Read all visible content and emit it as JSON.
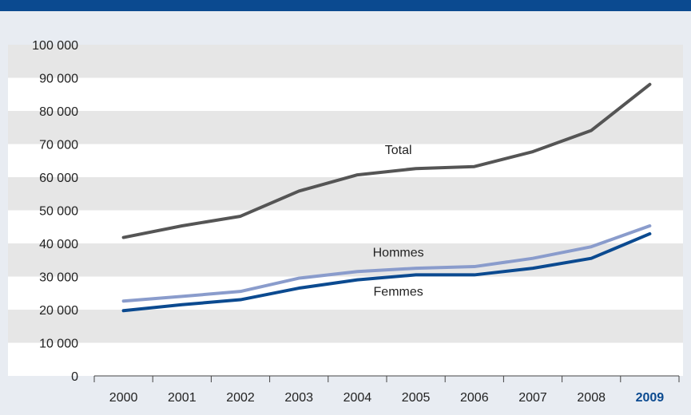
{
  "chart_data": {
    "type": "line",
    "x": [
      "2000",
      "2001",
      "2002",
      "2003",
      "2004",
      "2005",
      "2006",
      "2007",
      "2008",
      "2009"
    ],
    "highlight_x": "2009",
    "ylim": [
      0,
      100000
    ],
    "yticks": [
      0,
      10000,
      20000,
      30000,
      40000,
      50000,
      60000,
      70000,
      80000,
      90000,
      100000
    ],
    "ytick_labels": [
      "0",
      "10 000",
      "20 000",
      "30 000",
      "40 000",
      "50 000",
      "60 000",
      "70 000",
      "80 000",
      "90 000",
      "100 000"
    ],
    "grid": "alternating horizontal bands",
    "series": [
      {
        "name": "Total",
        "color": "#555555",
        "values": [
          41800,
          45300,
          48200,
          55800,
          60700,
          62600,
          63200,
          67700,
          74100,
          88000
        ]
      },
      {
        "name": "Hommes",
        "color": "#8a9ccc",
        "values": [
          22600,
          24000,
          25500,
          29500,
          31500,
          32500,
          33000,
          35500,
          39000,
          45300
        ]
      },
      {
        "name": "Femmes",
        "color": "#0b4a90",
        "values": [
          19700,
          21500,
          23000,
          26500,
          29000,
          30500,
          30500,
          32500,
          35500,
          42900
        ]
      }
    ],
    "series_labels": {
      "Total": {
        "at_index": 4.7,
        "value": 67000
      },
      "Hommes": {
        "at_index": 4.7,
        "value": 36000
      },
      "Femmes": {
        "at_index": 4.7,
        "value": 24200
      }
    }
  }
}
